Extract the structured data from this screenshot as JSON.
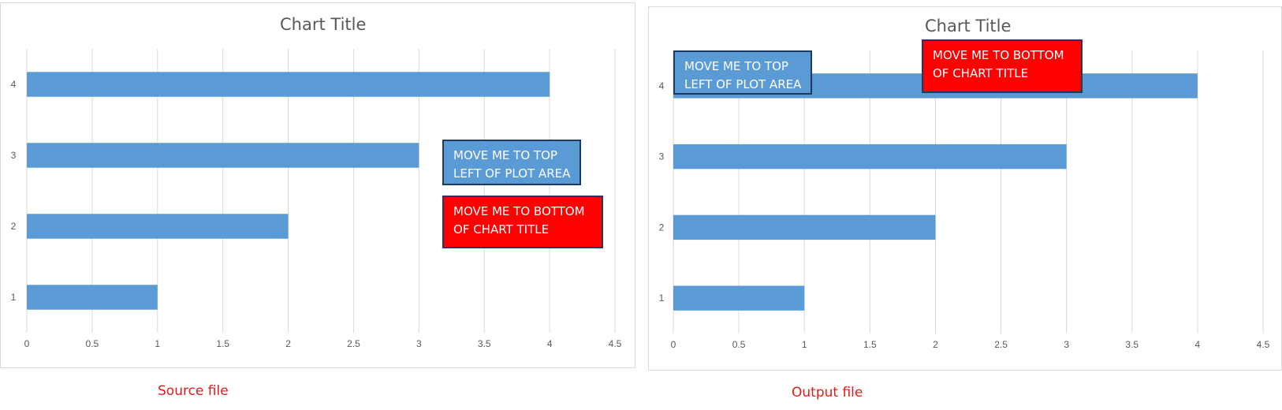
{
  "chart_data": [
    {
      "type": "bar",
      "orientation": "horizontal",
      "title": "Chart Title",
      "categories": [
        "1",
        "2",
        "3",
        "4"
      ],
      "values": [
        1,
        2,
        3,
        4
      ],
      "xlim": [
        0,
        4.5
      ],
      "x_ticks": [
        "0",
        "0.5",
        "1",
        "1.5",
        "2",
        "2.5",
        "3",
        "3.5",
        "4",
        "4.5"
      ],
      "grid": "vertical",
      "bar_color": "#5b9bd5",
      "caption": "Source file",
      "annotations": [
        {
          "text": "MOVE ME TO TOP\nLEFT OF PLOT AREA",
          "fill": "#5b9bd5"
        },
        {
          "text": "MOVE ME TO BOTTOM\nOF CHART TITLE",
          "fill": "#ff0000"
        }
      ]
    },
    {
      "type": "bar",
      "orientation": "horizontal",
      "title": "Chart Title",
      "categories": [
        "1",
        "2",
        "3",
        "4"
      ],
      "values": [
        1,
        2,
        3,
        4
      ],
      "xlim": [
        0,
        4.5
      ],
      "x_ticks": [
        "0",
        "0.5",
        "1",
        "1.5",
        "2",
        "2.5",
        "3",
        "3.5",
        "4",
        "4.5"
      ],
      "grid": "vertical",
      "bar_color": "#5b9bd5",
      "caption": "Output file",
      "annotations": [
        {
          "text": "MOVE ME TO TOP\nLEFT OF PLOT AREA",
          "fill": "#5b9bd5"
        },
        {
          "text": "MOVE ME TO BOTTOM\nOF CHART TITLE",
          "fill": "#ff0000"
        }
      ]
    }
  ]
}
